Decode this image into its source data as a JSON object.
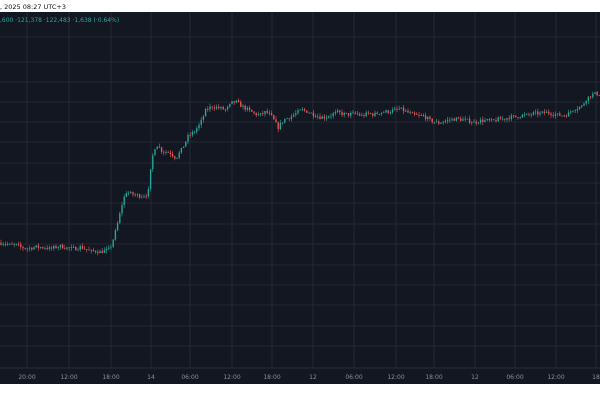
{
  "header": {
    "datetime": ", 2025 08:27 UTC+3"
  },
  "ohlc_readout": ",600 ·121,378 ·122,483 ·1,638 (·0.64%)",
  "colors": {
    "background": "#131722",
    "grid": "#2a2e39",
    "up": "#26a69a",
    "down": "#ef5350"
  },
  "chart_data": {
    "type": "candlestick",
    "ylim": [
      0,
      100
    ],
    "xticks": [
      "20:00",
      "12:00",
      "18:00",
      "14",
      "06:00",
      "12:00",
      "18:00",
      "12",
      "06:00",
      "12:00",
      "18:00",
      "12",
      "06:00",
      "12:00",
      "18"
    ],
    "levels": [
      [
        0,
        35.2
      ],
      [
        6,
        35.0
      ],
      [
        10,
        34.5
      ],
      [
        16,
        34.6
      ],
      [
        20,
        34.0
      ],
      [
        26,
        33.6
      ],
      [
        30,
        33.7
      ],
      [
        36,
        34.0
      ],
      [
        40,
        33.9
      ],
      [
        46,
        33.9
      ],
      [
        50,
        33.4
      ],
      [
        56,
        34.0
      ],
      [
        60,
        34.2
      ],
      [
        64,
        34.0
      ],
      [
        70,
        33.5
      ],
      [
        76,
        33.6
      ],
      [
        80,
        34.0
      ],
      [
        86,
        33.4
      ],
      [
        90,
        32.7
      ],
      [
        96,
        32.9
      ],
      [
        100,
        32.6
      ],
      [
        106,
        33.0
      ],
      [
        110,
        33.5
      ],
      [
        114,
        36.8
      ],
      [
        118,
        41.0
      ],
      [
        122,
        46.0
      ],
      [
        126,
        49.5
      ],
      [
        130,
        49.0
      ],
      [
        136,
        48.5
      ],
      [
        142,
        48.4
      ],
      [
        148,
        48.8
      ],
      [
        152,
        58.8
      ],
      [
        156,
        63.0
      ],
      [
        162,
        61.0
      ],
      [
        170,
        60.5
      ],
      [
        176,
        59.0
      ],
      [
        182,
        61.5
      ],
      [
        188,
        65.0
      ],
      [
        194,
        66.3
      ],
      [
        200,
        68.5
      ],
      [
        206,
        72.5
      ],
      [
        212,
        73.5
      ],
      [
        220,
        73.0
      ],
      [
        226,
        72.5
      ],
      [
        232,
        74.5
      ],
      [
        236,
        74.8
      ],
      [
        242,
        73.5
      ],
      [
        248,
        72.5
      ],
      [
        254,
        71.5
      ],
      [
        260,
        71.0
      ],
      [
        266,
        72.0
      ],
      [
        272,
        70.5
      ],
      [
        278,
        67.5
      ],
      [
        284,
        69.8
      ],
      [
        290,
        70.5
      ],
      [
        296,
        71.5
      ],
      [
        302,
        72.5
      ],
      [
        308,
        72.0
      ],
      [
        314,
        71.2
      ],
      [
        320,
        70.5
      ],
      [
        326,
        70.5
      ],
      [
        332,
        71.2
      ],
      [
        338,
        71.8
      ],
      [
        344,
        71.3
      ],
      [
        350,
        71.2
      ],
      [
        356,
        71.5
      ],
      [
        362,
        70.8
      ],
      [
        368,
        71.5
      ],
      [
        374,
        71.2
      ],
      [
        380,
        71.8
      ],
      [
        386,
        72.0
      ],
      [
        392,
        72.2
      ],
      [
        400,
        72.8
      ],
      [
        406,
        72.0
      ],
      [
        412,
        71.2
      ],
      [
        418,
        70.8
      ],
      [
        424,
        70.8
      ],
      [
        430,
        69.5
      ],
      [
        438,
        68.8
      ],
      [
        444,
        69.3
      ],
      [
        450,
        69.8
      ],
      [
        456,
        70.0
      ],
      [
        462,
        69.8
      ],
      [
        468,
        69.5
      ],
      [
        474,
        69.0
      ],
      [
        480,
        69.5
      ],
      [
        486,
        69.5
      ],
      [
        492,
        69.3
      ],
      [
        498,
        69.8
      ],
      [
        504,
        70.0
      ],
      [
        510,
        70.5
      ],
      [
        516,
        70.5
      ],
      [
        522,
        71.0
      ],
      [
        528,
        71.0
      ],
      [
        534,
        71.5
      ],
      [
        540,
        71.5
      ],
      [
        546,
        71.8
      ],
      [
        552,
        71.5
      ],
      [
        558,
        71.0
      ],
      [
        564,
        71.0
      ],
      [
        568,
        71.3
      ],
      [
        572,
        72.5
      ],
      [
        576,
        73.0
      ],
      [
        582,
        73.5
      ],
      [
        586,
        75.5
      ],
      [
        590,
        76.5
      ],
      [
        594,
        77.0
      ],
      [
        600,
        77.0
      ]
    ]
  }
}
